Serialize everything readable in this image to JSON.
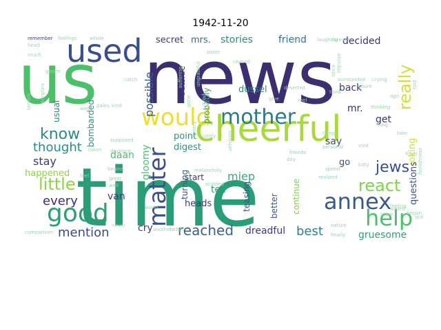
{
  "title": "1942-11-20",
  "words": [
    {
      "t": "time",
      "c": "#2a9d78"
    },
    {
      "t": "news",
      "c": "#3b2f6f"
    },
    {
      "t": "us",
      "c": "#4cbf6a"
    },
    {
      "t": "cheerful",
      "c": "#a8d83a"
    },
    {
      "t": "used",
      "c": "#3a4f8a"
    },
    {
      "t": "good",
      "c": "#2f9e73"
    },
    {
      "t": "would",
      "c": "#f0de2a"
    },
    {
      "t": "mother",
      "c": "#2b7a8a"
    },
    {
      "t": "matter",
      "c": "#3b4f8c"
    },
    {
      "t": "annex",
      "c": "#3a5a8c"
    },
    {
      "t": "help",
      "c": "#4cbf6a"
    },
    {
      "t": "react",
      "c": "#7fd24c"
    },
    {
      "t": "really",
      "c": "#cfe03a"
    },
    {
      "t": "know",
      "c": "#2a8a8a"
    },
    {
      "t": "little",
      "c": "#8fd444"
    },
    {
      "t": "jews",
      "c": "#3a4f8a"
    },
    {
      "t": "thought",
      "c": "#2b8a8c"
    },
    {
      "t": "reached",
      "c": "#3b5f8c"
    },
    {
      "t": "possible",
      "c": "#3b5b8c"
    },
    {
      "t": "mention",
      "c": "#3a4a86"
    },
    {
      "t": "every",
      "c": "#3b2f6f"
    },
    {
      "t": "stay",
      "c": "#3b3a78"
    },
    {
      "t": "miep",
      "c": "#3aaa78"
    },
    {
      "t": "best",
      "c": "#2f7e8c"
    },
    {
      "t": "gruesome",
      "c": "#2fa078"
    },
    {
      "t": "secret",
      "c": "#3b3a78"
    },
    {
      "t": "mrs.",
      "c": "#2d6e8e"
    },
    {
      "t": "stories",
      "c": "#2c8a8a"
    },
    {
      "t": "friend",
      "c": "#2f6e8c"
    },
    {
      "t": "decided",
      "c": "#3b3178"
    },
    {
      "t": "probably",
      "c": "#3aa078"
    },
    {
      "t": "joking",
      "c": "#cfe03a"
    },
    {
      "t": "questions",
      "c": "#3b4f8c"
    },
    {
      "t": "dussel",
      "c": "#2c8a8a"
    },
    {
      "t": "back",
      "c": "#3b3a78"
    },
    {
      "t": "usual",
      "c": "#2c8a8a"
    },
    {
      "t": "daan",
      "c": "#4cbf6a"
    },
    {
      "t": "mr.",
      "c": "#3b2f6f"
    },
    {
      "t": "get",
      "c": "#3b2f6f"
    },
    {
      "t": "say",
      "c": "#3b4f8c"
    },
    {
      "t": "happened",
      "c": "#8fd444"
    },
    {
      "t": "gloomy",
      "c": "#4cbf6a"
    },
    {
      "t": "digest",
      "c": "#2f8e8a"
    },
    {
      "t": "point",
      "c": "#2f8e8a"
    },
    {
      "t": "outside",
      "c": "#3b3a78"
    },
    {
      "t": "bombarded",
      "c": "#2c8a8a"
    },
    {
      "t": "turning",
      "c": "#3b4f8c"
    },
    {
      "t": "start",
      "c": "#3b3a78"
    },
    {
      "t": "tell",
      "c": "#2fa078"
    },
    {
      "t": "heads",
      "c": "#3b3a78"
    },
    {
      "t": "teasing",
      "c": "#3b4f8c"
    },
    {
      "t": "continue",
      "c": "#7fd24c"
    },
    {
      "t": "better",
      "c": "#3a5a8c"
    },
    {
      "t": "dreadful",
      "c": "#3b3a78"
    },
    {
      "t": "van",
      "c": "#3b3a78"
    },
    {
      "t": "cry",
      "c": "#3b3a78"
    },
    {
      "t": "go",
      "c": "#3b4f8c"
    },
    {
      "t": "remember",
      "c": "#3b3a78"
    },
    {
      "t": "feelings",
      "c": "#9bd4b0"
    },
    {
      "t": "whole",
      "c": "#9bd4b0"
    },
    {
      "t": "pass",
      "c": "#9bd4b0"
    },
    {
      "t": "laughing",
      "c": "#9bd4b0"
    },
    {
      "t": "crying",
      "c": "#9bd4b0"
    },
    {
      "t": "ceased",
      "c": "#9bd4b0"
    },
    {
      "t": "sister",
      "c": "#9bd4b0"
    },
    {
      "t": "gloom",
      "c": "#9bd4b0"
    },
    {
      "t": "catch",
      "c": "#9bd4b0"
    },
    {
      "t": "pales",
      "c": "#9bd4b0"
    },
    {
      "t": "suffering",
      "c": "#9bd4b0"
    },
    {
      "t": "ungrateful",
      "c": "#9bd4b0"
    },
    {
      "t": "surrounded",
      "c": "#9bd4b0"
    },
    {
      "t": "deserted",
      "c": "#9bd4b0"
    },
    {
      "t": "count",
      "c": "#9bd4b0"
    },
    {
      "t": "think",
      "c": "#9bd4b0"
    },
    {
      "t": "thinking",
      "c": "#9bd4b0"
    },
    {
      "t": "reel",
      "c": "#9bd4b0"
    },
    {
      "t": "give",
      "c": "#9bd4b0"
    },
    {
      "t": "told",
      "c": "#9bd4b0"
    },
    {
      "t": "ago",
      "c": "#9bd4b0"
    },
    {
      "t": "take",
      "c": "#9bd4b0"
    },
    {
      "t": "filled",
      "c": "#9bd4b0"
    },
    {
      "t": "void",
      "c": "#9bd4b0"
    },
    {
      "t": "still",
      "c": "#9bd4b0"
    },
    {
      "t": "added",
      "c": "#9bd4b0"
    },
    {
      "t": "place",
      "c": "#9bd4b0"
    },
    {
      "t": "begun",
      "c": "#9bd4b0"
    },
    {
      "t": "finally",
      "c": "#9bd4b0"
    },
    {
      "t": "nature",
      "c": "#9bd4b0"
    },
    {
      "t": "feeling",
      "c": "#9bd4b0"
    },
    {
      "t": "foolishness",
      "c": "#9bd4b0"
    },
    {
      "t": "realized",
      "c": "#9bd4b0"
    },
    {
      "t": "spend",
      "c": "#9bd4b0"
    },
    {
      "t": "friends",
      "c": "#9bd4b0"
    },
    {
      "t": "lately",
      "c": "#9bd4b0"
    },
    {
      "t": "things",
      "c": "#9bd4b0"
    },
    {
      "t": "unhappy",
      "c": "#9bd4b0"
    },
    {
      "t": "day",
      "c": "#9bd4b0"
    },
    {
      "t": "scolded",
      "c": "#9bd4b0"
    },
    {
      "t": "father",
      "c": "#9bd4b0"
    },
    {
      "t": "another",
      "c": "#9bd4b0"
    },
    {
      "t": "never",
      "c": "#9bd4b0"
    },
    {
      "t": "comparison",
      "c": "#9bd4b0"
    },
    {
      "t": "world",
      "c": "#9bd4b0"
    },
    {
      "t": "well",
      "c": "#9bd4b0"
    },
    {
      "t": "great",
      "c": "#9bd4b0"
    },
    {
      "t": "begins",
      "c": "#9bd4b0"
    },
    {
      "t": "feel",
      "c": "#9bd4b0"
    },
    {
      "t": "taken",
      "c": "#9bd4b0"
    },
    {
      "t": "disgrace",
      "c": "#9bd4b0"
    },
    {
      "t": "supposed",
      "c": "#9bd4b0"
    },
    {
      "t": "kind",
      "c": "#9bd4b0"
    },
    {
      "t": "mind",
      "c": "#9bd4b0"
    },
    {
      "t": "gone",
      "c": "#9bd4b0"
    },
    {
      "t": "misery",
      "c": "#9bd4b0"
    },
    {
      "t": "head",
      "c": "#9bd4b0"
    },
    {
      "t": "much",
      "c": "#9bd4b0"
    },
    {
      "t": "terribly",
      "c": "#9bd4b0"
    },
    {
      "t": "burglars",
      "c": "#9bd4b0"
    },
    {
      "t": "woes",
      "c": "#9bd4b0"
    },
    {
      "t": "melancholy",
      "c": "#9bd4b0"
    },
    {
      "t": "kitty",
      "c": "#9bd4b0"
    },
    {
      "t": "since",
      "c": "#9bd4b0"
    },
    {
      "t": "improve",
      "c": "#9bd4b0"
    },
    {
      "t": "long",
      "c": "#9bd4b0"
    },
    {
      "t": "personal",
      "c": "#9bd4b0"
    },
    {
      "t": "forever",
      "c": "#9bd4b0"
    }
  ]
}
